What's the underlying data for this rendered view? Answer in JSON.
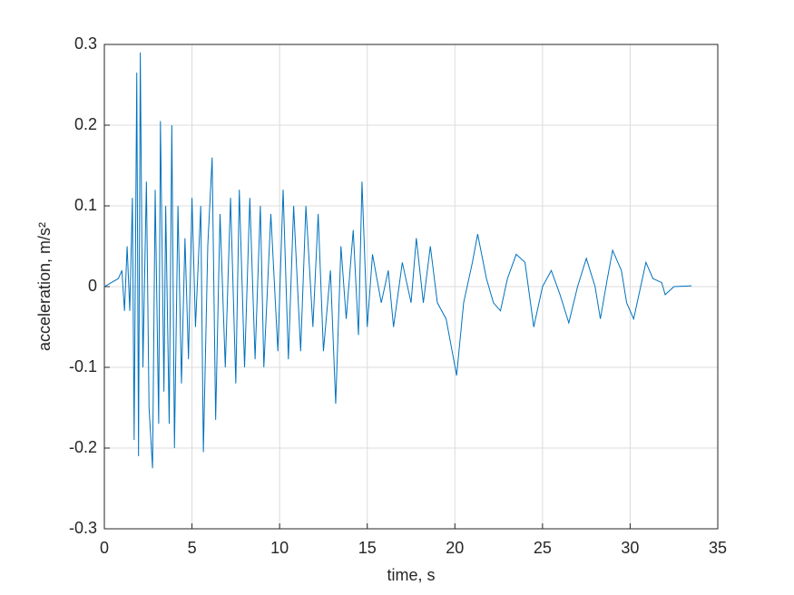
{
  "chart_data": {
    "type": "line",
    "xlabel": "time, s",
    "ylabel": "acceleration, m/s²",
    "xlim": [
      0,
      35
    ],
    "xticks": [
      0,
      5,
      10,
      15,
      20,
      25,
      30,
      35
    ],
    "ylim": [
      -0.3,
      0.3
    ],
    "yticks": [
      -0.3,
      -0.2,
      -0.1,
      0,
      0.1,
      0.2,
      0.3
    ],
    "grid": true,
    "series": [
      {
        "color": "#0072bd",
        "x": [
          0,
          0.4,
          0.8,
          1.0,
          1.15,
          1.3,
          1.45,
          1.6,
          1.7,
          1.85,
          1.95,
          2.05,
          2.2,
          2.4,
          2.55,
          2.75,
          2.9,
          3.1,
          3.2,
          3.4,
          3.5,
          3.7,
          3.85,
          4.0,
          4.2,
          4.4,
          4.6,
          4.8,
          5.0,
          5.2,
          5.5,
          5.65,
          5.9,
          6.15,
          6.35,
          6.6,
          6.9,
          7.2,
          7.5,
          7.7,
          8.0,
          8.3,
          8.6,
          8.9,
          9.1,
          9.5,
          9.9,
          10.2,
          10.5,
          10.8,
          11.2,
          11.5,
          11.9,
          12.2,
          12.5,
          12.9,
          13.2,
          13.5,
          13.8,
          14.2,
          14.5,
          14.7,
          15.0,
          15.3,
          15.8,
          16.2,
          16.5,
          17.0,
          17.5,
          17.8,
          18.2,
          18.6,
          19.0,
          19.5,
          20.1,
          20.5,
          21.0,
          21.3,
          21.8,
          22.2,
          22.6,
          23.0,
          23.5,
          24.0,
          24.5,
          25.0,
          25.5,
          26.0,
          26.5,
          27.0,
          27.5,
          28.0,
          28.3,
          28.7,
          29.0,
          29.5,
          29.8,
          30.2,
          30.6,
          30.9,
          31.3,
          31.8,
          32.0,
          32.5,
          33.5
        ],
        "values": [
          0,
          0.005,
          0.01,
          0.02,
          -0.03,
          0.05,
          -0.03,
          0.11,
          -0.19,
          0.265,
          -0.21,
          0.29,
          -0.1,
          0.13,
          -0.15,
          -0.225,
          0.12,
          -0.17,
          0.205,
          -0.13,
          0.1,
          -0.17,
          0.2,
          -0.2,
          0.1,
          -0.12,
          0.06,
          -0.09,
          0.11,
          -0.05,
          0.1,
          -0.205,
          0.05,
          0.16,
          -0.165,
          0.09,
          -0.1,
          0.11,
          -0.12,
          0.12,
          -0.1,
          0.11,
          -0.09,
          0.1,
          -0.1,
          0.09,
          -0.08,
          0.12,
          -0.09,
          0.1,
          -0.08,
          0.1,
          -0.05,
          0.09,
          -0.08,
          0.02,
          -0.145,
          0.05,
          -0.04,
          0.07,
          -0.06,
          0.13,
          -0.05,
          0.04,
          -0.02,
          0.02,
          -0.05,
          0.03,
          -0.02,
          0.06,
          -0.02,
          0.05,
          -0.02,
          -0.04,
          -0.11,
          -0.02,
          0.03,
          0.065,
          0.01,
          -0.02,
          -0.03,
          0.01,
          0.04,
          0.03,
          -0.05,
          0,
          0.02,
          -0.01,
          -0.045,
          0,
          0.035,
          0,
          -0.04,
          0.01,
          0.045,
          0.02,
          -0.02,
          -0.04,
          0,
          0.03,
          0.01,
          0.005,
          -0.01,
          0,
          0.001
        ]
      }
    ]
  }
}
